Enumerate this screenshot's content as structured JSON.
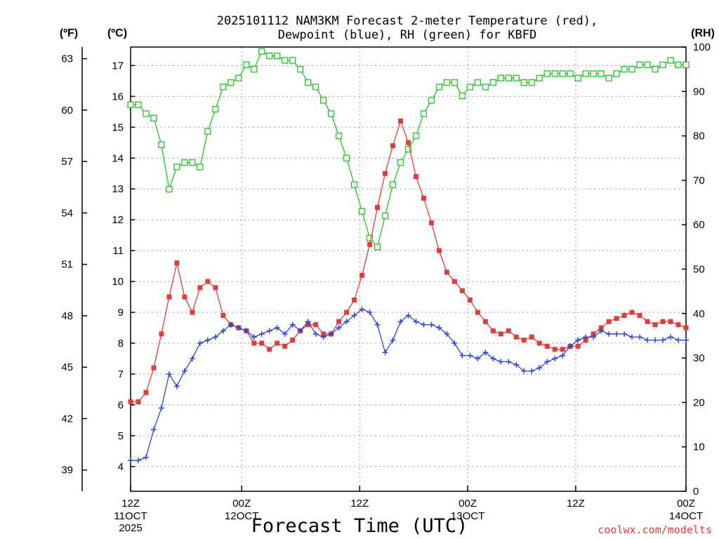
{
  "chart_data": {
    "type": "line",
    "title_lines": [
      "2025101112 NAM3KM Forecast 2-meter Temperature (red),",
      "Dewpoint (blue), RH (green) for KBFD"
    ],
    "xlabel": "Forecast Time (UTC)",
    "credit": "coolwx.com/modelts",
    "units": {
      "fahrenheit": "(ºF)",
      "celsius": "(ºC)",
      "rh": "(RH)"
    },
    "x_range_hours": [
      0,
      36
    ],
    "celsius_range": [
      3.2,
      17.6
    ],
    "rh_range": [
      0,
      100
    ],
    "celsius_ticks": [
      4,
      5,
      6,
      7,
      8,
      9,
      10,
      11,
      12,
      13,
      14,
      15,
      16,
      17
    ],
    "fahrenheit_ticks": [
      39,
      42,
      45,
      48,
      51,
      54,
      57,
      60,
      63
    ],
    "rh_ticks": [
      0,
      10,
      20,
      30,
      40,
      50,
      60,
      70,
      80,
      90,
      100
    ],
    "x_ticks": [
      {
        "hour": 0,
        "label": "12Z",
        "date": "11OCT",
        "year": "2025"
      },
      {
        "hour": 7.2,
        "label": "00Z",
        "date": "12OCT",
        "year": ""
      },
      {
        "hour": 14.85,
        "label": "12Z",
        "date": "",
        "year": ""
      },
      {
        "hour": 21.85,
        "label": "00Z",
        "date": "13OCT",
        "year": ""
      },
      {
        "hour": 28.85,
        "label": "12Z",
        "date": "",
        "year": ""
      },
      {
        "hour": 36,
        "label": "00Z",
        "date": "14OCT",
        "year": ""
      }
    ],
    "colors": {
      "temperature": "#e53a3a",
      "dewpoint": "#2b46d8",
      "rh": "#1ec81e"
    },
    "grid": true,
    "series": [
      {
        "key": "temperature",
        "unit": "C",
        "points": [
          [
            0,
            6.1
          ],
          [
            0.5,
            6.1
          ],
          [
            1,
            6.4
          ],
          [
            1.5,
            7.2
          ],
          [
            2,
            8.3
          ],
          [
            2.5,
            9.5
          ],
          [
            3,
            10.6
          ],
          [
            3.5,
            9.5
          ],
          [
            4,
            9.0
          ],
          [
            4.5,
            9.8
          ],
          [
            5,
            10.0
          ],
          [
            5.5,
            9.8
          ],
          [
            6,
            8.9
          ],
          [
            6.5,
            8.6
          ],
          [
            7,
            8.5
          ],
          [
            7.5,
            8.4
          ],
          [
            8,
            8.0
          ],
          [
            8.5,
            8.0
          ],
          [
            9,
            7.8
          ],
          [
            9.5,
            8.0
          ],
          [
            10,
            7.9
          ],
          [
            10.5,
            8.1
          ],
          [
            11,
            8.4
          ],
          [
            11.5,
            8.6
          ],
          [
            12,
            8.6
          ],
          [
            12.5,
            8.3
          ],
          [
            13,
            8.3
          ],
          [
            13.5,
            8.7
          ],
          [
            14,
            9.0
          ],
          [
            14.5,
            9.4
          ],
          [
            15,
            10.2
          ],
          [
            15.5,
            11.2
          ],
          [
            16,
            12.4
          ],
          [
            16.5,
            13.5
          ],
          [
            17,
            14.4
          ],
          [
            17.5,
            15.2
          ],
          [
            18,
            14.5
          ],
          [
            18.5,
            13.4
          ],
          [
            19,
            12.7
          ],
          [
            19.5,
            11.9
          ],
          [
            20,
            11.0
          ],
          [
            20.5,
            10.3
          ],
          [
            21,
            10.0
          ],
          [
            21.5,
            9.7
          ],
          [
            22,
            9.4
          ],
          [
            22.5,
            9.0
          ],
          [
            23,
            8.7
          ],
          [
            23.5,
            8.4
          ],
          [
            24,
            8.3
          ],
          [
            24.5,
            8.4
          ],
          [
            25,
            8.2
          ],
          [
            25.5,
            8.1
          ],
          [
            26,
            8.2
          ],
          [
            26.5,
            8.0
          ],
          [
            27,
            7.9
          ],
          [
            27.5,
            7.8
          ],
          [
            28,
            7.8
          ],
          [
            28.5,
            7.9
          ],
          [
            29,
            7.9
          ],
          [
            29.5,
            8.1
          ],
          [
            30,
            8.3
          ],
          [
            30.5,
            8.5
          ],
          [
            31,
            8.7
          ],
          [
            31.5,
            8.8
          ],
          [
            32,
            8.9
          ],
          [
            32.5,
            9.0
          ],
          [
            33,
            8.9
          ],
          [
            33.5,
            8.7
          ],
          [
            34,
            8.6
          ],
          [
            34.5,
            8.7
          ],
          [
            35,
            8.7
          ],
          [
            35.5,
            8.6
          ],
          [
            36,
            8.5
          ]
        ]
      },
      {
        "key": "dewpoint",
        "unit": "C",
        "points": [
          [
            0,
            4.2
          ],
          [
            0.5,
            4.2
          ],
          [
            1,
            4.3
          ],
          [
            1.5,
            5.2
          ],
          [
            2,
            5.9
          ],
          [
            2.5,
            7.0
          ],
          [
            3,
            6.6
          ],
          [
            3.5,
            7.1
          ],
          [
            4,
            7.5
          ],
          [
            4.5,
            8.0
          ],
          [
            5,
            8.1
          ],
          [
            5.5,
            8.2
          ],
          [
            6,
            8.4
          ],
          [
            6.5,
            8.6
          ],
          [
            7,
            8.5
          ],
          [
            7.5,
            8.4
          ],
          [
            8,
            8.2
          ],
          [
            8.5,
            8.3
          ],
          [
            9,
            8.4
          ],
          [
            9.5,
            8.5
          ],
          [
            10,
            8.3
          ],
          [
            10.5,
            8.6
          ],
          [
            11,
            8.4
          ],
          [
            11.5,
            8.7
          ],
          [
            12,
            8.3
          ],
          [
            12.5,
            8.2
          ],
          [
            13,
            8.3
          ],
          [
            13.5,
            8.5
          ],
          [
            14,
            8.7
          ],
          [
            14.5,
            8.9
          ],
          [
            15,
            9.1
          ],
          [
            15.5,
            9.0
          ],
          [
            16,
            8.6
          ],
          [
            16.5,
            7.7
          ],
          [
            17,
            8.1
          ],
          [
            17.5,
            8.7
          ],
          [
            18,
            8.9
          ],
          [
            18.5,
            8.7
          ],
          [
            19,
            8.6
          ],
          [
            19.5,
            8.6
          ],
          [
            20,
            8.5
          ],
          [
            20.5,
            8.3
          ],
          [
            21,
            8.0
          ],
          [
            21.5,
            7.6
          ],
          [
            22,
            7.6
          ],
          [
            22.5,
            7.5
          ],
          [
            23,
            7.7
          ],
          [
            23.5,
            7.5
          ],
          [
            24,
            7.4
          ],
          [
            24.5,
            7.4
          ],
          [
            25,
            7.3
          ],
          [
            25.5,
            7.1
          ],
          [
            26,
            7.1
          ],
          [
            26.5,
            7.2
          ],
          [
            27,
            7.4
          ],
          [
            27.5,
            7.5
          ],
          [
            28,
            7.6
          ],
          [
            28.5,
            7.9
          ],
          [
            29,
            8.1
          ],
          [
            29.5,
            8.2
          ],
          [
            30,
            8.2
          ],
          [
            30.5,
            8.4
          ],
          [
            31,
            8.3
          ],
          [
            31.5,
            8.3
          ],
          [
            32,
            8.3
          ],
          [
            32.5,
            8.2
          ],
          [
            33,
            8.2
          ],
          [
            33.5,
            8.1
          ],
          [
            34,
            8.1
          ],
          [
            34.5,
            8.1
          ],
          [
            35,
            8.2
          ],
          [
            35.5,
            8.1
          ],
          [
            36,
            8.1
          ]
        ]
      },
      {
        "key": "rh",
        "unit": "RH",
        "points": [
          [
            0,
            87
          ],
          [
            0.5,
            87
          ],
          [
            1,
            85
          ],
          [
            1.5,
            84
          ],
          [
            2,
            78
          ],
          [
            2.5,
            68
          ],
          [
            3,
            73
          ],
          [
            3.5,
            74
          ],
          [
            4,
            74
          ],
          [
            4.5,
            73
          ],
          [
            5,
            81
          ],
          [
            5.5,
            86
          ],
          [
            6,
            91
          ],
          [
            6.5,
            92
          ],
          [
            7,
            93
          ],
          [
            7.5,
            96
          ],
          [
            8,
            95
          ],
          [
            8.5,
            99
          ],
          [
            9,
            98
          ],
          [
            9.5,
            98
          ],
          [
            10,
            97
          ],
          [
            10.5,
            97
          ],
          [
            11,
            95
          ],
          [
            11.5,
            92
          ],
          [
            12,
            91
          ],
          [
            12.5,
            88
          ],
          [
            13,
            85
          ],
          [
            13.5,
            80
          ],
          [
            14,
            75
          ],
          [
            14.5,
            69
          ],
          [
            15,
            63
          ],
          [
            15.5,
            57
          ],
          [
            16,
            55
          ],
          [
            16.5,
            62
          ],
          [
            17,
            69
          ],
          [
            17.5,
            74
          ],
          [
            18,
            77
          ],
          [
            18.5,
            80
          ],
          [
            19,
            85
          ],
          [
            19.5,
            88
          ],
          [
            20,
            91
          ],
          [
            20.5,
            92
          ],
          [
            21,
            92
          ],
          [
            21.5,
            89
          ],
          [
            22,
            91
          ],
          [
            22.5,
            92
          ],
          [
            23,
            91
          ],
          [
            23.5,
            92
          ],
          [
            24,
            93
          ],
          [
            24.5,
            93
          ],
          [
            25,
            93
          ],
          [
            25.5,
            92
          ],
          [
            26,
            92
          ],
          [
            26.5,
            93
          ],
          [
            27,
            94
          ],
          [
            27.5,
            94
          ],
          [
            28,
            94
          ],
          [
            28.5,
            94
          ],
          [
            29,
            93
          ],
          [
            29.5,
            94
          ],
          [
            30,
            94
          ],
          [
            30.5,
            94
          ],
          [
            31,
            93
          ],
          [
            31.5,
            94
          ],
          [
            32,
            95
          ],
          [
            32.5,
            95
          ],
          [
            33,
            96
          ],
          [
            33.5,
            96
          ],
          [
            34,
            95
          ],
          [
            34.5,
            96
          ],
          [
            35,
            97
          ],
          [
            35.5,
            96
          ],
          [
            36,
            96
          ]
        ]
      }
    ]
  }
}
